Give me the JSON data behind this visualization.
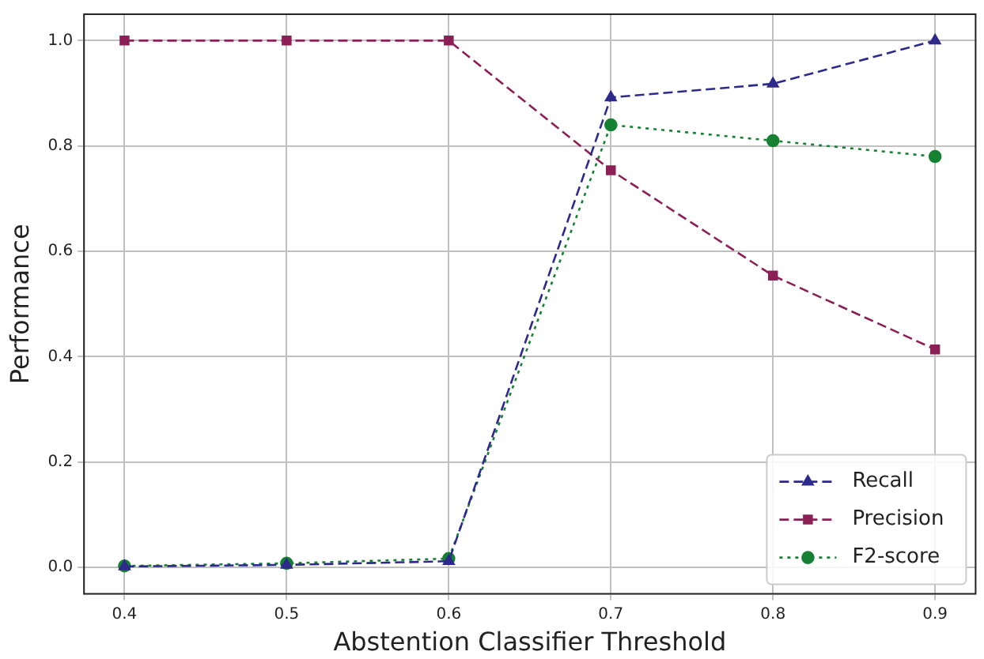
{
  "chart_data": {
    "type": "line",
    "xlabel": "Abstention Classifier Threshold",
    "ylabel": "Performance",
    "x": [
      0.4,
      0.5,
      0.6,
      0.7,
      0.8,
      0.9
    ],
    "xlim": [
      0.375,
      0.925
    ],
    "xticks": [
      0.4,
      0.5,
      0.6,
      0.7,
      0.8,
      0.9
    ],
    "ylim": [
      -0.05,
      1.05
    ],
    "yticks": [
      {
        "value": 0,
        "label": "0.0"
      },
      {
        "value": 0.2,
        "label": "0.2"
      },
      {
        "value": 0.4,
        "label": "0.4"
      },
      {
        "value": 0.6,
        "label": "0.6"
      },
      {
        "value": 0.8,
        "label": "0.8"
      },
      {
        "value": 1,
        "label": "1.0"
      }
    ],
    "grid": true,
    "legend": "bottom right",
    "series": [
      {
        "name": "Recall",
        "color": "#2e2a8c",
        "marker": "triangle",
        "line_style": "dashed",
        "values": [
          0.002,
          0.005,
          0.012,
          0.892,
          0.918,
          1.0
        ]
      },
      {
        "name": "Precision",
        "color": "#8c1f56",
        "marker": "square",
        "line_style": "dashed",
        "values": [
          1.0,
          1.0,
          1.0,
          0.754,
          0.554,
          0.414
        ]
      },
      {
        "name": "F2-score",
        "color": "#168033",
        "marker": "circle",
        "line_style": "dotted",
        "values": [
          0.003,
          0.008,
          0.017,
          0.84,
          0.81,
          0.78
        ]
      }
    ]
  }
}
